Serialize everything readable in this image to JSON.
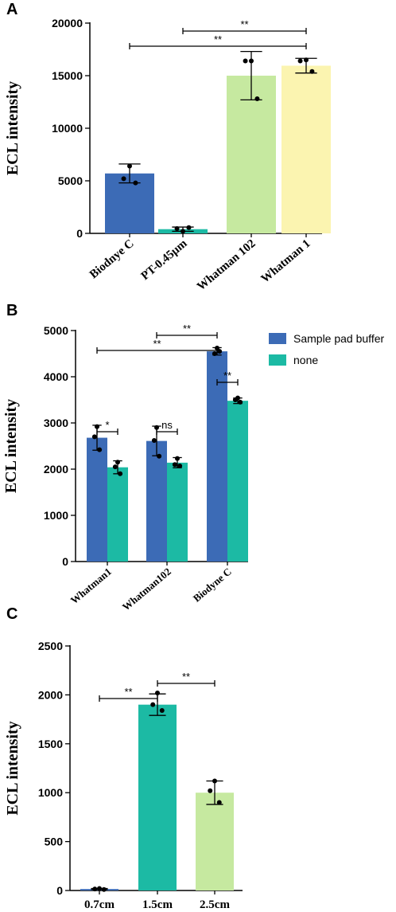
{
  "chart_data": [
    {
      "panel": "A",
      "type": "bar",
      "title": "",
      "xlabel": "",
      "ylabel": "ECL intensity",
      "ylim": [
        0,
        20000
      ],
      "yticks": [
        0,
        5000,
        10000,
        15000,
        20000
      ],
      "categories": [
        "Biodnye C",
        "PT-0.45μm",
        "Whatman 102",
        "Whatman 1"
      ],
      "values": [
        5700,
        400,
        15000,
        15950
      ],
      "errors": [
        900,
        200,
        2300,
        700
      ],
      "points": [
        [
          6400,
          5200,
          4800
        ],
        [
          200,
          450,
          550
        ],
        [
          16400,
          16400,
          12800
        ],
        [
          16500,
          16400,
          15400
        ]
      ],
      "bar_colors": [
        "#3c6bb6",
        "#1cbaa4",
        "#c6e9a0",
        "#fbf4b0"
      ],
      "significance": [
        {
          "from": 1,
          "to": 3,
          "label": "**"
        },
        {
          "from": 0,
          "to": 3,
          "label": "**"
        }
      ],
      "grid": false
    },
    {
      "panel": "B",
      "type": "bar",
      "title": "",
      "xlabel": "",
      "ylabel": "ECL intensity",
      "ylim": [
        0,
        5000
      ],
      "yticks": [
        0,
        1000,
        2000,
        3000,
        4000,
        5000
      ],
      "categories": [
        "Whatman1",
        "Whatman102",
        "Biodyne C"
      ],
      "series": [
        {
          "name": "Sample pad buffer",
          "color": "#3c6bb6",
          "values": [
            2680,
            2610,
            4550
          ],
          "errors": [
            270,
            320,
            80
          ],
          "points": [
            [
              2920,
              2700,
              2420
            ],
            [
              2900,
              2620,
              2280
            ],
            [
              4620,
              4500,
              4550
            ]
          ]
        },
        {
          "name": "none",
          "color": "#1cbaa4",
          "values": [
            2040,
            2140,
            3480
          ],
          "errors": [
            140,
            110,
            60
          ],
          "points": [
            [
              2150,
              2050,
              1900
            ],
            [
              2230,
              2100,
              2070
            ],
            [
              3540,
              3500,
              3450
            ]
          ]
        }
      ],
      "significance": [
        {
          "pair": [
            0,
            0,
            0,
            1
          ],
          "label": "*"
        },
        {
          "pair": [
            1,
            0,
            1,
            1
          ],
          "label": "ns"
        },
        {
          "pair": [
            2,
            0,
            2,
            1
          ],
          "label": "**"
        },
        {
          "pair": [
            1,
            0,
            2,
            0
          ],
          "label": "**"
        },
        {
          "pair": [
            0,
            0,
            2,
            0
          ],
          "label": "**"
        }
      ],
      "legend_position": "top-right",
      "grid": false
    },
    {
      "panel": "C",
      "type": "bar",
      "title": "",
      "xlabel": "",
      "ylabel": "ECL intensity",
      "ylim": [
        0,
        2500
      ],
      "yticks": [
        0,
        500,
        1000,
        1500,
        2000,
        2500
      ],
      "categories": [
        "0.7cm",
        "1.5cm",
        "2.5cm"
      ],
      "values": [
        15,
        1900,
        1000
      ],
      "errors": [
        5,
        110,
        120
      ],
      "points": [
        [
          20,
          15,
          10
        ],
        [
          2020,
          1900,
          1840
        ],
        [
          1120,
          1020,
          900
        ]
      ],
      "bar_colors": [
        "#3c6bb6",
        "#1cbaa4",
        "#c6e9a0"
      ],
      "significance": [
        {
          "from": 0,
          "to": 1,
          "label": "**"
        },
        {
          "from": 1,
          "to": 2,
          "label": "**"
        }
      ],
      "grid": false
    }
  ]
}
